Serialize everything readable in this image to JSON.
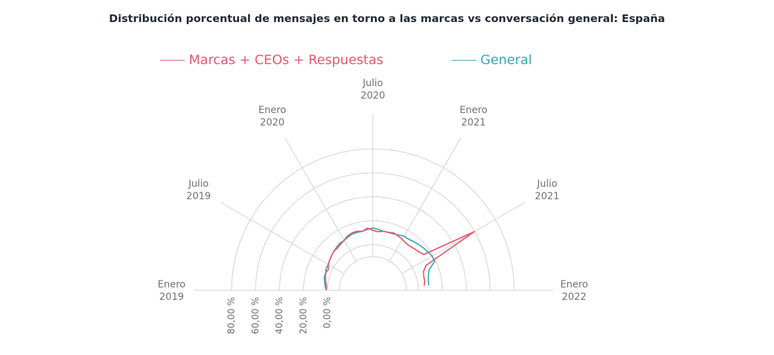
{
  "chart_data": {
    "type": "polar-line",
    "title": "Distribución porcentual de mensajes en torno a las marcas vs conversación general: España",
    "angle_labels": [
      {
        "line1": "Enero",
        "line2": "2019"
      },
      {
        "line1": "Julio",
        "line2": "2019"
      },
      {
        "line1": "Enero",
        "line2": "2020"
      },
      {
        "line1": "Julio",
        "line2": "2020"
      },
      {
        "line1": "Enero",
        "line2": "2021"
      },
      {
        "line1": "Julio",
        "line2": "2021"
      },
      {
        "line1": "Enero",
        "line2": "2022"
      }
    ],
    "radial_ticks": [
      "0,00 %",
      "20,00 %",
      "40,00 %",
      "60,00 %",
      "80,00 %"
    ],
    "radial_range": [
      0,
      80
    ],
    "months": 36,
    "series": [
      {
        "name": "Marcas + CEOs + Respuestas",
        "color": "#e8566e",
        "values": [
          1,
          1,
          2,
          3,
          4,
          3,
          5,
          6,
          7,
          8,
          8,
          9,
          10,
          12,
          13,
          13,
          12,
          14,
          12,
          11,
          12,
          12,
          13,
          12,
          11,
          10,
          10,
          11,
          12,
          14,
          60,
          11,
          7,
          6,
          6,
          5
        ]
      },
      {
        "name": "General",
        "color": "#3aa6b5",
        "values": [
          1,
          2,
          3,
          4,
          4,
          5,
          5,
          6,
          7,
          8,
          9,
          10,
          10,
          11,
          12,
          12,
          12,
          13,
          14,
          13,
          12,
          12,
          12,
          13,
          14,
          14,
          15,
          16,
          17,
          18,
          19,
          19,
          12,
          10,
          9,
          9
        ]
      }
    ],
    "grid_color": "#d0d0d0"
  }
}
